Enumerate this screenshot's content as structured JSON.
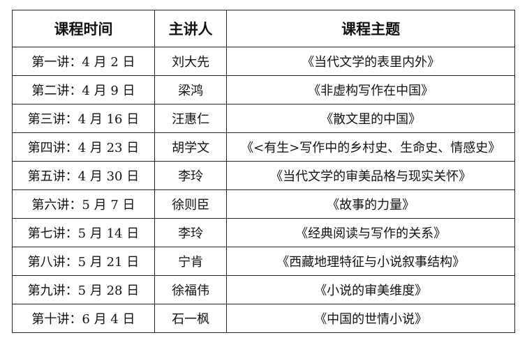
{
  "headers": [
    "课程时间",
    "主讲人",
    "课程主题"
  ],
  "rows": [
    {
      "time": "第一讲：4 月 2 日",
      "speaker": "刘大先",
      "topic": "《当代文学的表里内外》"
    },
    {
      "time": "第二讲：4 月 9 日",
      "speaker": "梁鸿",
      "topic": "《非虚构写作在中国》"
    },
    {
      "time": "第三讲：4 月 16 日",
      "speaker": "汪惠仁",
      "topic": "《散文里的中国》"
    },
    {
      "time": "第四讲：4 月 23 日",
      "speaker": "胡学文",
      "topic": "《<有生>写作中的乡村史、生命史、情感史》"
    },
    {
      "time": "第五讲：4 月 30 日",
      "speaker": "李玲",
      "topic": "《当代文学的审美品格与现实关怀》"
    },
    {
      "time": "第六讲：5 月 7 日",
      "speaker": "徐则臣",
      "topic": "《故事的力量》"
    },
    {
      "time": "第七讲：5 月 14 日",
      "speaker": "李玲",
      "topic": "《经典阅读与写作的关系》"
    },
    {
      "time": "第八讲：5 月 21 日",
      "speaker": "宁肯",
      "topic": "《西藏地理特征与小说叙事结构》"
    },
    {
      "time": "第九讲：5 月 28 日",
      "speaker": "徐福伟",
      "topic": "《小说的审美维度》"
    },
    {
      "time": "第十讲：6 月 4 日",
      "speaker": "石一枫",
      "topic": "《中国的世情小说》"
    }
  ]
}
